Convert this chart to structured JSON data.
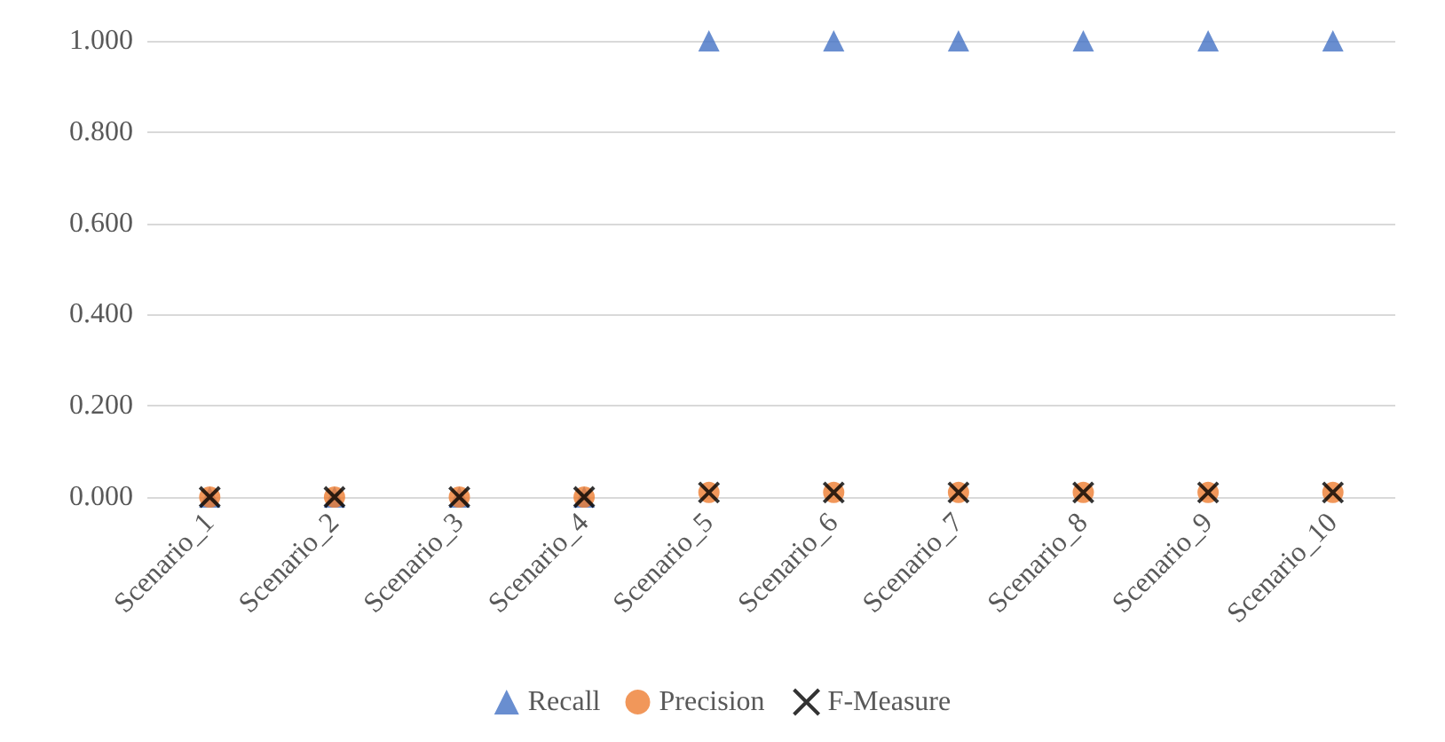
{
  "chart_data": {
    "type": "scatter",
    "categories": [
      "Scenario_1",
      "Scenario_2",
      "Scenario_3",
      "Scenario_4",
      "Scenario_5",
      "Scenario_6",
      "Scenario_7",
      "Scenario_8",
      "Scenario_9",
      "Scenario_10"
    ],
    "series": [
      {
        "name": "Recall",
        "color": "#4472c4",
        "marker": "triangle",
        "values": [
          0,
          0,
          0,
          0,
          1,
          1,
          1,
          1,
          1,
          1
        ]
      },
      {
        "name": "Precision",
        "color": "#ed7d31",
        "marker": "circle",
        "values": [
          0,
          0,
          0,
          0,
          0.01,
          0.01,
          0.01,
          0.01,
          0.01,
          0.01
        ]
      },
      {
        "name": "F-Measure",
        "color": "#000000",
        "marker": "cross",
        "values": [
          0,
          0,
          0,
          0,
          0.01,
          0.01,
          0.01,
          0.01,
          0.01,
          0.01
        ]
      }
    ],
    "ylim": [
      0,
      1
    ],
    "yticks": [
      {
        "value": 0,
        "label": "0.000"
      },
      {
        "value": 0.2,
        "label": "0.200"
      },
      {
        "value": 0.4,
        "label": "0.400"
      },
      {
        "value": 0.6,
        "label": "0.600"
      },
      {
        "value": 0.8,
        "label": "0.800"
      },
      {
        "value": 1,
        "label": "1.000"
      }
    ],
    "grid": "y",
    "legend": "bottom"
  }
}
